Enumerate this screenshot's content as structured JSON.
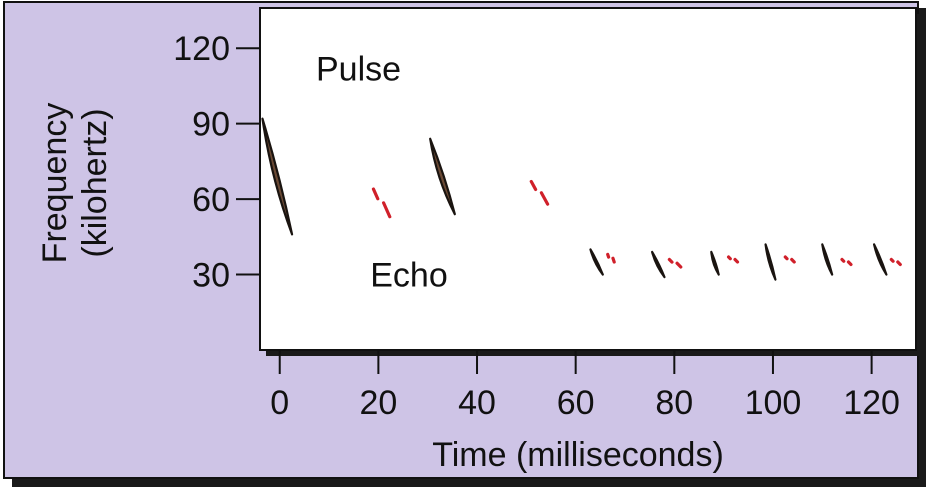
{
  "chart_data": {
    "type": "scatter",
    "xlabel": "Time (milliseconds)",
    "ylabel_line1": "Frequency",
    "ylabel_line2": "(kilohertz)",
    "x_ticks": [
      0,
      20,
      40,
      60,
      80,
      100,
      120
    ],
    "y_ticks": [
      30,
      60,
      90,
      120
    ],
    "xlim": [
      -4,
      129
    ],
    "ylim": [
      0,
      136
    ],
    "colors": {
      "background": "#cec4e6",
      "pulse": "#1a1410",
      "pulse_fill": "#6b4a35",
      "echo": "#d0202a"
    },
    "annotations": [
      {
        "name": "pulse-label",
        "text": "Pulse",
        "x": 11,
        "y": 112
      },
      {
        "name": "echo-label",
        "text": "Echo",
        "x": 22,
        "y": 30
      }
    ],
    "series": [
      {
        "role": "pulse",
        "calls": [
          {
            "t_start": -3.5,
            "t_end": 2.5,
            "f_start": 92,
            "f_end": 46,
            "width": 1.6
          },
          {
            "t_start": 30.5,
            "t_end": 35.5,
            "f_start": 84,
            "f_end": 54,
            "width": 1.6
          },
          {
            "t_start": 63,
            "t_end": 65.5,
            "f_start": 40,
            "f_end": 30,
            "width": 0.7
          },
          {
            "t_start": 75.5,
            "t_end": 78,
            "f_start": 39,
            "f_end": 29,
            "width": 0.7
          },
          {
            "t_start": 87.5,
            "t_end": 89,
            "f_start": 39,
            "f_end": 30,
            "width": 0.7
          },
          {
            "t_start": 98.5,
            "t_end": 100.5,
            "f_start": 42,
            "f_end": 28,
            "width": 0.7
          },
          {
            "t_start": 110,
            "t_end": 112,
            "f_start": 42,
            "f_end": 30,
            "width": 0.7
          },
          {
            "t_start": 120.5,
            "t_end": 123,
            "f_start": 42,
            "f_end": 30,
            "width": 0.7
          }
        ]
      },
      {
        "role": "echo",
        "calls": [
          {
            "t_start": 19,
            "t_end": 21.5,
            "f_start": 64,
            "f_end": 53
          },
          {
            "t_start": 51,
            "t_end": 53.5,
            "f_start": 67,
            "f_end": 58
          },
          {
            "t_start": 66.5,
            "t_end": 67,
            "f_start": 38,
            "f_end": 35
          },
          {
            "t_start": 79,
            "t_end": 80.5,
            "f_start": 36,
            "f_end": 33
          },
          {
            "t_start": 91,
            "t_end": 92,
            "f_start": 37,
            "f_end": 35
          },
          {
            "t_start": 102.5,
            "t_end": 103.5,
            "f_start": 37,
            "f_end": 35
          },
          {
            "t_start": 114,
            "t_end": 115,
            "f_start": 36,
            "f_end": 34
          },
          {
            "t_start": 124,
            "t_end": 125,
            "f_start": 36,
            "f_end": 34
          }
        ]
      }
    ]
  }
}
